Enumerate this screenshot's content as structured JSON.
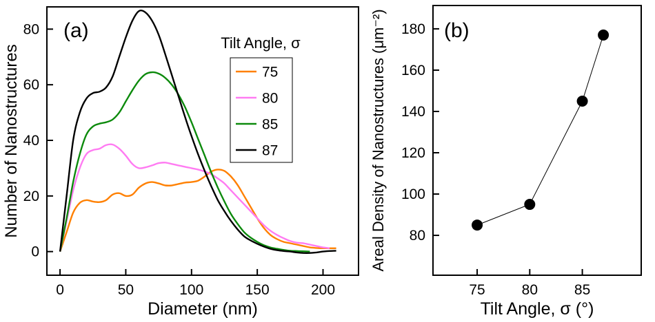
{
  "figure": {
    "background": "#ffffff"
  },
  "chart_data": [
    {
      "type": "line",
      "panel_label": "(a)",
      "xlabel": "Diameter (nm)",
      "ylabel": "Number of Nanostructures",
      "xlim": [
        -10,
        227
      ],
      "ylim": [
        -8.5,
        88
      ],
      "xticks": [
        0,
        50,
        100,
        150,
        200
      ],
      "yticks": [
        0,
        20,
        40,
        60,
        80
      ],
      "grid": false,
      "legend": {
        "title": "Tilt Angle, σ",
        "position": "upper-right"
      },
      "series": [
        {
          "name": "75",
          "color": "#FF8000",
          "x": [
            0,
            5,
            10,
            15,
            20,
            25,
            30,
            35,
            40,
            45,
            50,
            55,
            60,
            65,
            70,
            75,
            80,
            85,
            90,
            95,
            100,
            105,
            110,
            115,
            120,
            125,
            130,
            135,
            140,
            145,
            150,
            155,
            160,
            165,
            170,
            175,
            180,
            185,
            190,
            195,
            200,
            205,
            210
          ],
          "y": [
            0,
            7,
            14,
            17.5,
            18.5,
            18,
            17.8,
            18.5,
            20.5,
            21,
            20,
            20.5,
            23,
            24.5,
            25,
            24.5,
            23.8,
            23.8,
            24.3,
            24.8,
            25,
            25.5,
            27,
            28.8,
            29.5,
            29,
            27,
            24,
            20,
            16,
            12,
            8.5,
            6,
            4.5,
            3.5,
            3,
            2.5,
            2,
            1.5,
            1.3,
            1.2,
            1.2,
            1.2
          ]
        },
        {
          "name": "80",
          "color": "#FF7BF2",
          "x": [
            0,
            5,
            10,
            15,
            20,
            25,
            30,
            35,
            40,
            45,
            50,
            55,
            60,
            65,
            70,
            75,
            80,
            85,
            90,
            95,
            100,
            105,
            110,
            115,
            120,
            125,
            130,
            135,
            140,
            145,
            150,
            155,
            160,
            165,
            170,
            175,
            180,
            185,
            190,
            195,
            200,
            205
          ],
          "y": [
            0,
            11,
            22,
            30,
            35,
            36.5,
            37,
            38.3,
            38.5,
            37,
            34.5,
            31.5,
            30,
            30.3,
            31,
            31.8,
            32,
            31.5,
            31,
            30.5,
            30,
            29.5,
            28.8,
            27.8,
            26.3,
            24.5,
            22,
            19.5,
            17,
            14.5,
            12,
            9.5,
            7.5,
            6,
            4.8,
            3.8,
            3.2,
            3,
            2.5,
            2,
            1.5,
            1.2
          ]
        },
        {
          "name": "85",
          "color": "#0C8A0C",
          "x": [
            0,
            5,
            10,
            15,
            20,
            25,
            30,
            35,
            40,
            45,
            50,
            55,
            60,
            65,
            70,
            75,
            80,
            85,
            90,
            95,
            100,
            105,
            110,
            115,
            120,
            125,
            130,
            135,
            140,
            145,
            150,
            155,
            160,
            165,
            170,
            175,
            180,
            185,
            190
          ],
          "y": [
            0,
            12,
            25,
            35,
            42,
            45,
            46,
            46.5,
            47.5,
            50,
            54,
            58,
            61.5,
            63.8,
            64.5,
            64,
            62.5,
            60,
            56.5,
            52,
            46.5,
            40.5,
            34.5,
            28.5,
            23,
            18,
            13.5,
            10,
            7,
            5,
            3.5,
            2.3,
            1.5,
            1,
            0.6,
            0.3,
            0.2,
            0.1,
            0
          ]
        },
        {
          "name": "87",
          "color": "#000000",
          "x": [
            0,
            5,
            10,
            15,
            20,
            25,
            30,
            35,
            40,
            45,
            50,
            55,
            60,
            65,
            70,
            75,
            80,
            85,
            90,
            95,
            100,
            105,
            110,
            115,
            120,
            125,
            130,
            135,
            140,
            145,
            150,
            155,
            160,
            165,
            170,
            175,
            180,
            185,
            190,
            195,
            200,
            205,
            210
          ],
          "y": [
            0,
            20,
            40,
            50,
            55,
            57,
            57.5,
            59,
            63,
            70,
            77,
            83,
            86.5,
            86,
            83,
            78,
            71,
            63.5,
            56,
            48.5,
            41.5,
            35,
            29,
            23.5,
            18.5,
            14.5,
            11,
            8,
            5.5,
            4,
            2.8,
            1.8,
            1,
            0.5,
            0.2,
            0,
            -0.3,
            -0.5,
            -0.5,
            -0.3,
            0,
            0.2,
            0.3
          ]
        }
      ]
    },
    {
      "type": "scatter",
      "panel_label": "(b)",
      "xlabel": "Tilt Angle, σ (°)",
      "ylabel": "Areal Density of Nanostructures (μm⁻²)",
      "xlim": [
        70.8,
        90.6
      ],
      "ylim": [
        60.7,
        191.3
      ],
      "xticks": [
        75,
        80,
        85
      ],
      "yticks": [
        80,
        100,
        120,
        140,
        160,
        180
      ],
      "grid": false,
      "x": [
        75,
        80,
        85,
        87
      ],
      "y": [
        85,
        95,
        145,
        177
      ],
      "marker_color": "#000000",
      "line_color": "#000000"
    }
  ]
}
